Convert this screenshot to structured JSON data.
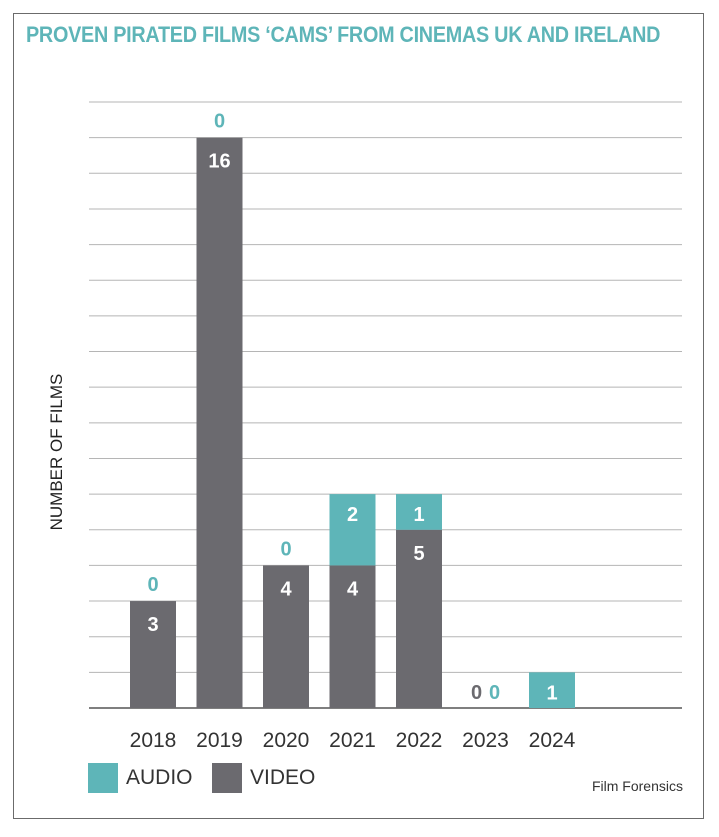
{
  "chart_data": {
    "type": "bar",
    "stacked": true,
    "title": "PROVEN PIRATED FILMS ‘CAMS’ FROM CINEMAS UK AND IRELAND",
    "ylabel": "NUMBER OF FILMS",
    "xlabel": "",
    "ylim": [
      0,
      17
    ],
    "grid": true,
    "legend_placement": "bottom-left",
    "categories": [
      "2018",
      "2019",
      "2020",
      "2021",
      "2022",
      "2023",
      "2024"
    ],
    "series": [
      {
        "name": "VIDEO",
        "color": "#6b6a6f",
        "values": [
          3,
          16,
          4,
          4,
          5,
          0,
          0
        ]
      },
      {
        "name": "AUDIO",
        "color": "#5eb5b8",
        "values": [
          0,
          0,
          0,
          2,
          1,
          0,
          1
        ]
      }
    ],
    "source": "Film Forensics"
  }
}
